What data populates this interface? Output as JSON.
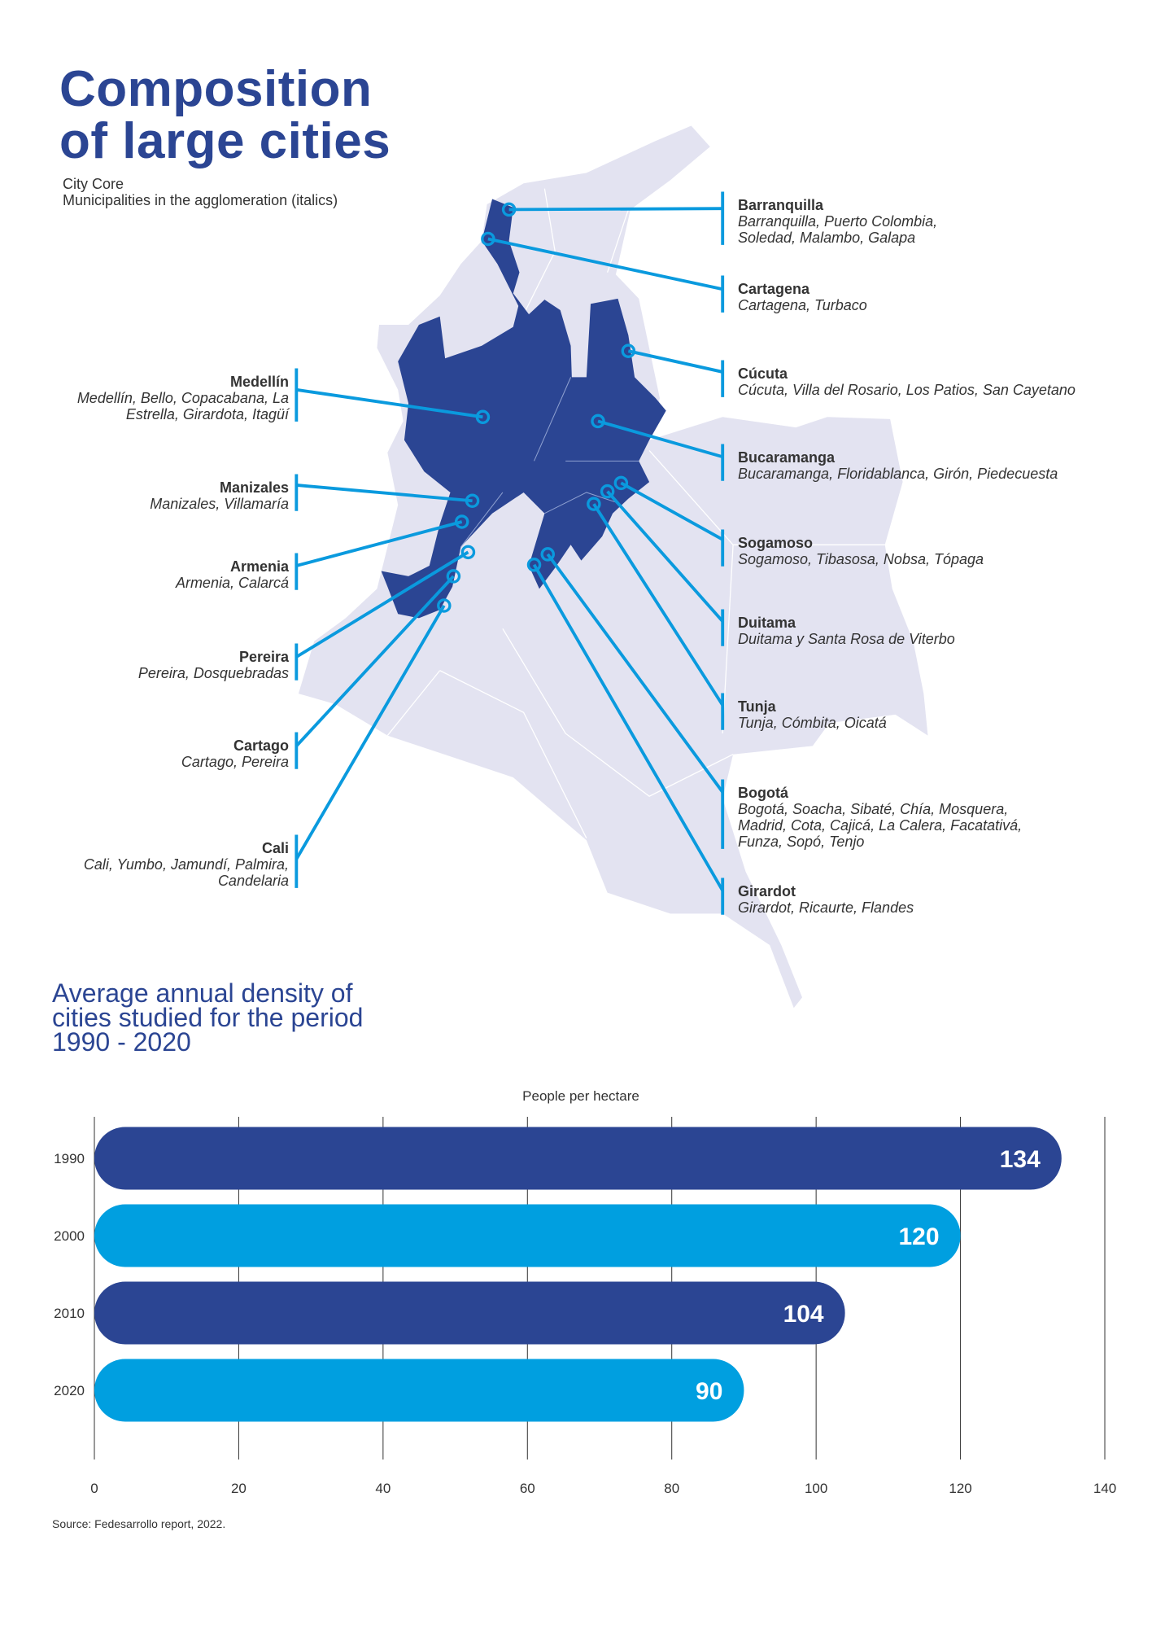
{
  "header": {
    "title_line1": "Composition",
    "title_line2": "of large cities",
    "legend_core": "City Core",
    "legend_munis": "Municipalities in the agglomeration (italics)"
  },
  "cities": {
    "right": [
      {
        "name": "Barranquilla",
        "munis": [
          "Barranquilla, Puerto Colombia,",
          "Soledad, Malambo, Galapa"
        ]
      },
      {
        "name": "Cartagena",
        "munis": [
          "Cartagena, Turbaco"
        ]
      },
      {
        "name": "Cúcuta",
        "munis": [
          "Cúcuta, Villa del Rosario, Los Patios, San Cayetano"
        ]
      },
      {
        "name": "Bucaramanga",
        "munis": [
          "Bucaramanga, Floridablanca, Girón, Piedecuesta"
        ]
      },
      {
        "name": "Sogamoso",
        "munis": [
          "Sogamoso, Tibasosa, Nobsa, Tópaga"
        ]
      },
      {
        "name": "Duitama",
        "munis": [
          "Duitama y Santa Rosa de Viterbo"
        ]
      },
      {
        "name": "Tunja",
        "munis": [
          "Tunja, Cómbita, Oicatá"
        ]
      },
      {
        "name": "Bogotá",
        "munis": [
          "Bogotá, Soacha, Sibaté, Chía, Mosquera,",
          "Madrid, Cota, Cajicá, La Calera, Facatativá,",
          "Funza, Sopó, Tenjo"
        ]
      },
      {
        "name": "Girardot",
        "munis": [
          "Girardot, Ricaurte, Flandes"
        ]
      }
    ],
    "left": [
      {
        "name": "Medellín",
        "munis": [
          "Medellín, Bello, Copacabana, La",
          "Estrella, Girardota, Itagüí"
        ]
      },
      {
        "name": "Manizales",
        "munis": [
          "Manizales, Villamaría"
        ]
      },
      {
        "name": "Armenia",
        "munis": [
          "Armenia, Calarcá"
        ]
      },
      {
        "name": "Pereira",
        "munis": [
          "Pereira, Dosquebradas"
        ]
      },
      {
        "name": "Cartago",
        "munis": [
          "Cartago, Pereira"
        ]
      },
      {
        "name": "Cali",
        "munis": [
          "Cali, Yumbo, Jamundí, Palmira,",
          "Candelaria"
        ]
      }
    ]
  },
  "colors": {
    "dark": "#2b4593",
    "light": "#009fe0",
    "land": "#e3e3f1",
    "leader": "#0a9ade"
  },
  "chart_data": {
    "type": "bar",
    "orientation": "horizontal",
    "title": "Average annual density of cities studied for the period 1990 - 2020",
    "title_lines": [
      "Average annual density of",
      "cities studied for the period",
      "1990 - 2020"
    ],
    "xlabel": "People per hectare",
    "ylabel": "",
    "categories": [
      "1990",
      "2000",
      "2010",
      "2020"
    ],
    "values": [
      134,
      120,
      104,
      90
    ],
    "value_labels": [
      "134",
      "120",
      "104",
      "90"
    ],
    "xlim": [
      0,
      140
    ],
    "xticks": [
      "0",
      "20",
      "40",
      "60",
      "80",
      "100",
      "120",
      "140"
    ],
    "grid": true,
    "source": "Source: Fedesarrollo report, 2022."
  }
}
